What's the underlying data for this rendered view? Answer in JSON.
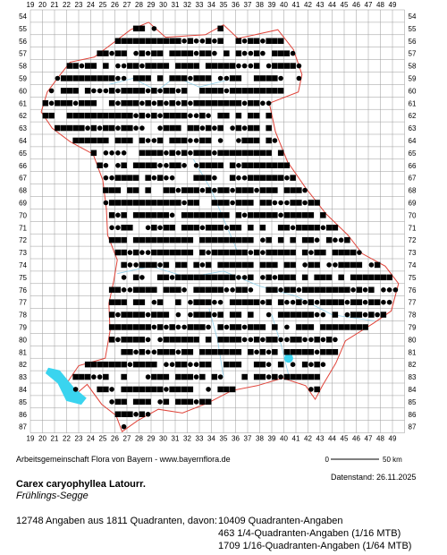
{
  "map": {
    "x_labels": [
      "19",
      "20",
      "21",
      "22",
      "23",
      "24",
      "25",
      "26",
      "27",
      "28",
      "29",
      "30",
      "31",
      "32",
      "33",
      "34",
      "35",
      "36",
      "37",
      "38",
      "39",
      "40",
      "41",
      "42",
      "43",
      "44",
      "45",
      "46",
      "47",
      "48",
      "49"
    ],
    "y_labels": [
      "54",
      "55",
      "56",
      "57",
      "58",
      "59",
      "60",
      "61",
      "62",
      "63",
      "64",
      "65",
      "66",
      "67",
      "68",
      "69",
      "70",
      "71",
      "72",
      "73",
      "74",
      "75",
      "76",
      "77",
      "78",
      "79",
      "80",
      "81",
      "82",
      "83",
      "84",
      "85",
      "86",
      "87"
    ],
    "scale": {
      "start": "0",
      "end": "50 km"
    },
    "colors": {
      "grid": "#9a9a9a",
      "border": "#e0443a",
      "water": "#3ad4ef",
      "river": "#8fd0ea",
      "square": "#000000",
      "dot": "#000000"
    }
  },
  "credit": "Arbeitsgemeinschaft Flora von Bayern - www.bayernflora.de",
  "date_text": "Datenstand: 26.11.2025",
  "species": {
    "scientific": "Carex caryophyllea Latourr.",
    "common": "Frühlings-Segge"
  },
  "stats": {
    "summary": "12748 Angaben aus 1811 Quadranten, davon:",
    "lines": [
      "10409 Quadranten-Angaben",
      "463 1/4-Quadranten-Angaben (1/16 MTB)",
      "1709 1/16-Quadranten-Angaben (1/64 MTB)"
    ]
  }
}
